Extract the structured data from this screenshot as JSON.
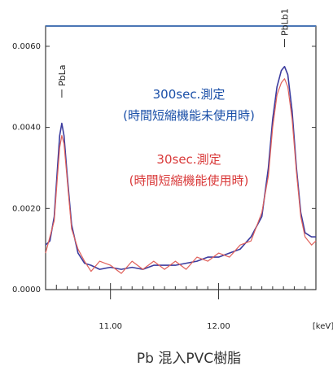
{
  "chart_data": {
    "type": "line",
    "title": "",
    "xlabel": "",
    "ylabel": "",
    "x_unit": "[keV]",
    "xlim": [
      10.4,
      12.9
    ],
    "ylim": [
      0.0,
      0.0065
    ],
    "x_ticks": [
      "11.00",
      "12.00"
    ],
    "y_ticks": [
      "0.0000",
      "0.0020",
      "0.0040",
      "0.0060"
    ],
    "x_tick_values": [
      11.0,
      12.0
    ],
    "y_tick_values": [
      0.0,
      0.002,
      0.004,
      0.006
    ],
    "peaks": [
      {
        "label": "PbLa",
        "x": 10.55
      },
      {
        "label": "PbLb1",
        "x": 12.61
      }
    ],
    "annotations": {
      "blue_line1": "300sec.測定",
      "blue_line2": "(時間短縮機能未使用時)",
      "red_line1": "30sec.測定",
      "red_line2": "(時間短縮機能使用時)"
    },
    "caption": "Pb 混入PVC樹脂",
    "series": [
      {
        "color": "#3b3b9e",
        "x": [
          10.4,
          10.44,
          10.48,
          10.51,
          10.53,
          10.55,
          10.57,
          10.6,
          10.64,
          10.7,
          10.76,
          10.82,
          10.9,
          11.0,
          11.1,
          11.2,
          11.3,
          11.4,
          11.5,
          11.6,
          11.7,
          11.8,
          11.9,
          12.0,
          12.1,
          12.2,
          12.3,
          12.4,
          12.46,
          12.5,
          12.54,
          12.58,
          12.61,
          12.64,
          12.68,
          12.72,
          12.76,
          12.8,
          12.86,
          12.9
        ],
        "y": [
          0.0011,
          0.0012,
          0.0018,
          0.003,
          0.0038,
          0.0041,
          0.0038,
          0.0028,
          0.0016,
          0.0009,
          0.00065,
          0.0006,
          0.0005,
          0.00055,
          0.0005,
          0.00055,
          0.0005,
          0.0006,
          0.0006,
          0.0006,
          0.00065,
          0.0007,
          0.0008,
          0.0008,
          0.0009,
          0.001,
          0.0013,
          0.0018,
          0.003,
          0.0042,
          0.005,
          0.0054,
          0.0055,
          0.0053,
          0.0044,
          0.003,
          0.0019,
          0.0014,
          0.0013,
          0.0013
        ]
      },
      {
        "color": "#e0605a",
        "x": [
          10.4,
          10.44,
          10.48,
          10.51,
          10.53,
          10.55,
          10.57,
          10.6,
          10.64,
          10.7,
          10.76,
          10.82,
          10.9,
          11.0,
          11.1,
          11.2,
          11.3,
          11.4,
          11.5,
          11.6,
          11.7,
          11.8,
          11.9,
          12.0,
          12.1,
          12.2,
          12.3,
          12.4,
          12.46,
          12.5,
          12.54,
          12.58,
          12.61,
          12.64,
          12.68,
          12.72,
          12.76,
          12.8,
          12.86,
          12.9
        ],
        "y": [
          0.0009,
          0.0013,
          0.0017,
          0.0028,
          0.0035,
          0.0038,
          0.0036,
          0.0027,
          0.0015,
          0.001,
          0.0007,
          0.00045,
          0.0007,
          0.0006,
          0.0004,
          0.0007,
          0.0005,
          0.0007,
          0.0005,
          0.0007,
          0.0005,
          0.0008,
          0.0007,
          0.0009,
          0.0008,
          0.0011,
          0.0012,
          0.0019,
          0.0028,
          0.004,
          0.0048,
          0.0051,
          0.0052,
          0.005,
          0.0042,
          0.0029,
          0.0018,
          0.0013,
          0.0011,
          0.0012
        ]
      }
    ]
  }
}
